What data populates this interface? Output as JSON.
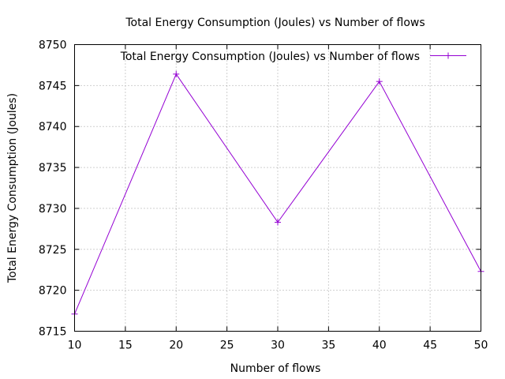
{
  "chart_data": {
    "type": "line",
    "title": "Total Energy Consumption (Joules) vs Number of flows",
    "xlabel": "Number of flows",
    "ylabel": "Total Energy Consumption (Joules)",
    "xlim": [
      10,
      50
    ],
    "ylim": [
      8715,
      8750
    ],
    "xticks": [
      10,
      15,
      20,
      25,
      30,
      35,
      40,
      45,
      50
    ],
    "yticks": [
      8715,
      8720,
      8725,
      8730,
      8735,
      8740,
      8745,
      8750
    ],
    "grid": true,
    "legend_position": "top-right",
    "series": [
      {
        "name": "Total Energy Consumption (Joules) vs Number of flows",
        "color": "#9400d3",
        "marker": "plus",
        "x": [
          10,
          20,
          30,
          40,
          50
        ],
        "y": [
          8717.1,
          8746.4,
          8728.3,
          8745.5,
          8722.3
        ]
      }
    ]
  }
}
